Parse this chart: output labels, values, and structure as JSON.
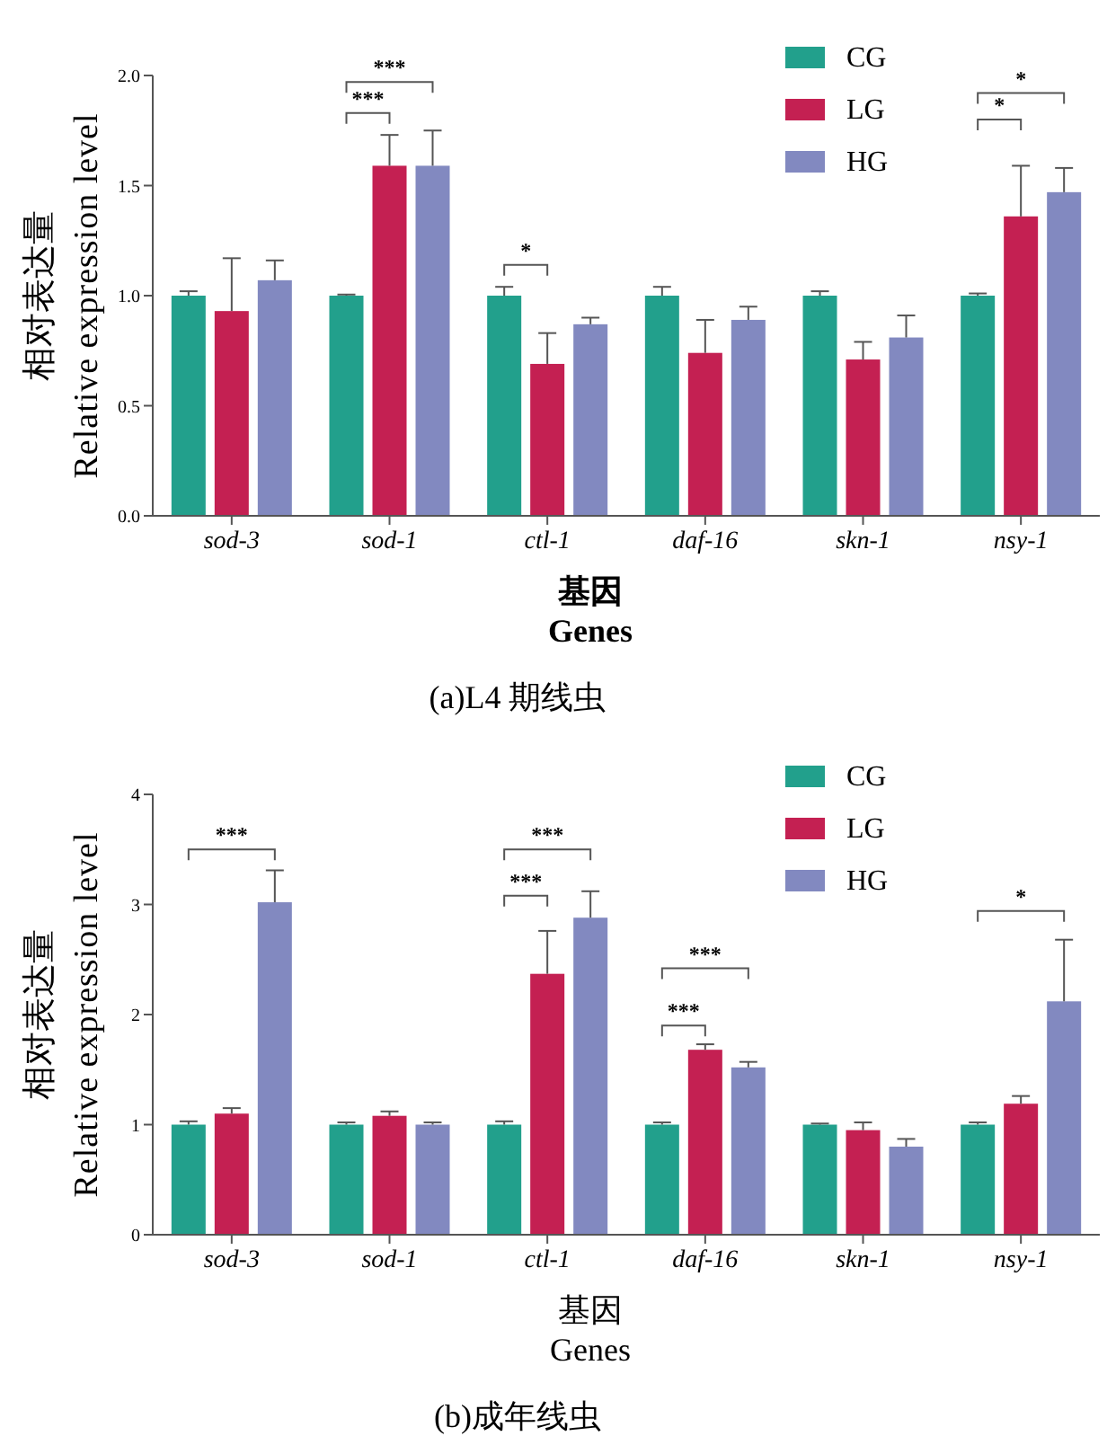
{
  "chart_data": [
    {
      "type": "bar",
      "title": "(a)L4 期线虫",
      "xlabel": "基因\nGenes",
      "ylabel": "相对表达量\nRelative expression level",
      "categories": [
        "sod-3",
        "sod-1",
        "ctl-1",
        "daf-16",
        "skn-1",
        "nsy-1"
      ],
      "series": [
        {
          "name": "CG",
          "color": "#22a08c",
          "values": [
            1.0,
            1.0,
            1.0,
            1.0,
            1.0,
            1.0
          ],
          "errors": [
            [
              1.0,
              1.02
            ],
            [
              1.0,
              1.005
            ],
            [
              1.0,
              1.04
            ],
            [
              1.0,
              1.04
            ],
            [
              1.0,
              1.02
            ],
            [
              1.0,
              1.01
            ]
          ]
        },
        {
          "name": "LG",
          "color": "#c42052",
          "values": [
            0.93,
            1.59,
            0.69,
            0.74,
            0.71,
            1.36
          ],
          "errors": [
            [
              0.93,
              1.17
            ],
            [
              1.59,
              1.73
            ],
            [
              0.69,
              0.83
            ],
            [
              0.74,
              0.89
            ],
            [
              0.71,
              0.79
            ],
            [
              1.36,
              1.59
            ]
          ]
        },
        {
          "name": "HG",
          "color": "#8289c0",
          "values": [
            1.07,
            1.59,
            0.87,
            0.89,
            0.81,
            1.47
          ],
          "errors": [
            [
              1.07,
              1.16
            ],
            [
              1.59,
              1.75
            ],
            [
              0.87,
              0.9
            ],
            [
              0.89,
              0.95
            ],
            [
              0.81,
              0.91
            ],
            [
              1.47,
              1.58
            ]
          ]
        }
      ],
      "ylim": [
        0,
        2
      ],
      "yticks": [
        {
          "value": 0,
          "label": "0.0"
        },
        0.5,
        {
          "value": 1,
          "label": "1.0"
        },
        1.5,
        {
          "value": 2,
          "label": "2.0"
        }
      ],
      "legend": "top right",
      "annotations": [
        "***",
        "***",
        "*",
        "*",
        "*"
      ]
    },
    {
      "type": "bar",
      "title": "(b)成年线虫",
      "xlabel": "基因\nGenes",
      "ylabel": "相对表达量\nRelative expression level",
      "categories": [
        "sod-3",
        "sod-1",
        "ctl-1",
        "daf-16",
        "skn-1",
        "nsy-1"
      ],
      "series": [
        {
          "name": "CG",
          "color": "#22a08c",
          "values": [
            1.0,
            1.0,
            1.0,
            1.0,
            1.0,
            1.0
          ],
          "errors": [
            [
              1.0,
              1.03
            ],
            [
              1.0,
              1.02
            ],
            [
              1.0,
              1.03
            ],
            [
              1.0,
              1.02
            ],
            [
              1.0,
              1.01
            ],
            [
              1.0,
              1.02
            ]
          ]
        },
        {
          "name": "LG",
          "color": "#c42052",
          "values": [
            1.1,
            1.08,
            2.37,
            1.68,
            0.95,
            1.19
          ],
          "errors": [
            [
              1.1,
              1.15
            ],
            [
              1.08,
              1.12
            ],
            [
              2.37,
              2.76
            ],
            [
              1.68,
              1.73
            ],
            [
              0.95,
              1.02
            ],
            [
              1.19,
              1.26
            ]
          ]
        },
        {
          "name": "HG",
          "color": "#8289c0",
          "values": [
            3.02,
            1.0,
            2.88,
            1.52,
            0.8,
            2.12
          ],
          "errors": [
            [
              3.02,
              3.31
            ],
            [
              1.0,
              1.02
            ],
            [
              2.88,
              3.12
            ],
            [
              1.52,
              1.57
            ],
            [
              0.8,
              0.87
            ],
            [
              2.12,
              2.68
            ]
          ]
        }
      ],
      "ylim": [
        0,
        4
      ],
      "yticks": [
        0,
        1,
        2,
        3,
        4
      ],
      "legend": "top right",
      "annotations": [
        "***",
        "***",
        "***",
        "***",
        "***",
        "*"
      ]
    }
  ]
}
